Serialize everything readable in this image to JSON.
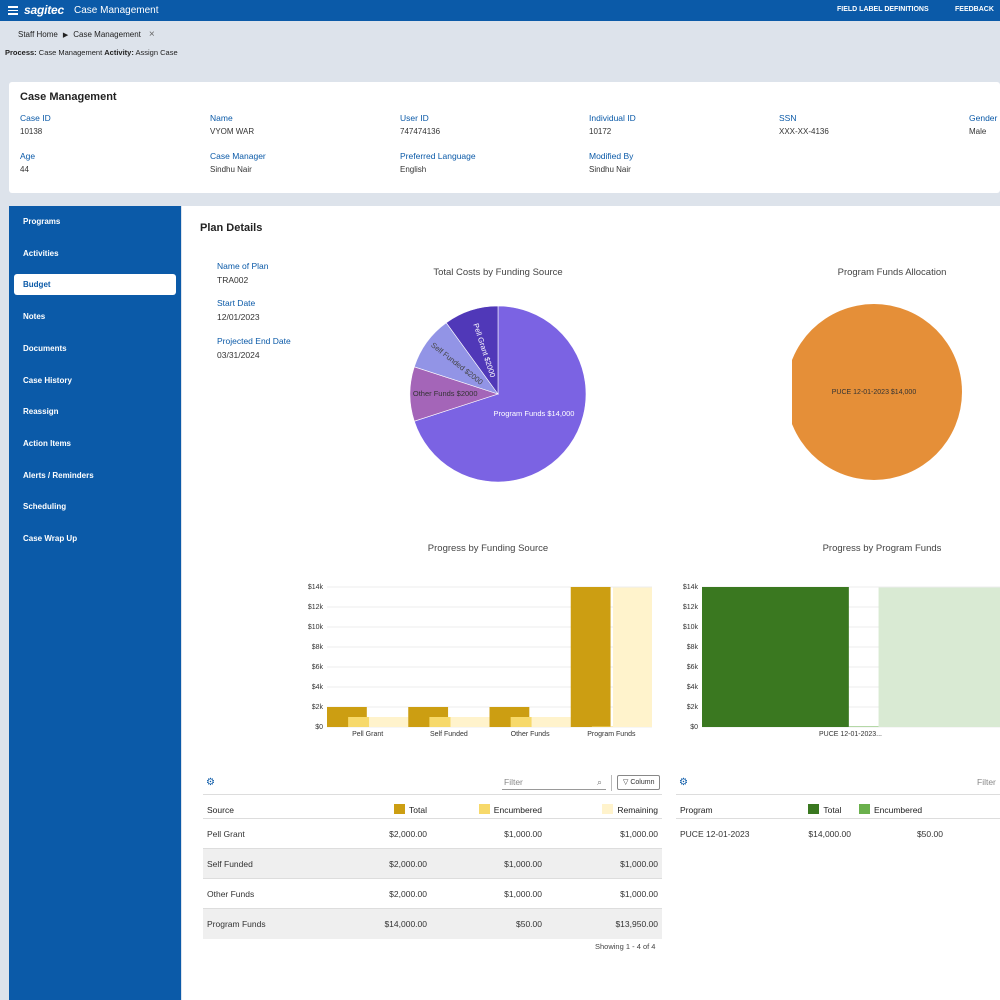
{
  "topbar": {
    "brand": "sagitec",
    "app_title": "Case Management",
    "link_field_labels": "FIELD LABEL DEFINITIONS",
    "link_feedback": "FEEDBACK"
  },
  "breadcrumb": {
    "home": "Staff Home",
    "current": "Case Management",
    "close": "×"
  },
  "process": {
    "process_label": "Process:",
    "process_value": "Case Management",
    "activity_label": "Activity:",
    "activity_value": "Assign Case"
  },
  "case": {
    "title": "Case Management",
    "fields": {
      "case_id": {
        "label": "Case ID",
        "value": "10138"
      },
      "name": {
        "label": "Name",
        "value": "VYOM WAR"
      },
      "user_id": {
        "label": "User ID",
        "value": "747474136"
      },
      "individual_id": {
        "label": "Individual ID",
        "value": "10172"
      },
      "ssn": {
        "label": "SSN",
        "value": "XXX-XX-4136"
      },
      "gender": {
        "label": "Gender",
        "value": "Male"
      },
      "age": {
        "label": "Age",
        "value": "44"
      },
      "case_manager": {
        "label": "Case Manager",
        "value": "Sindhu Nair"
      },
      "preferred_language": {
        "label": "Preferred Language",
        "value": "English"
      },
      "modified_by": {
        "label": "Modified By",
        "value": "Sindhu Nair"
      }
    }
  },
  "sidebar": {
    "items": [
      {
        "label": "Programs"
      },
      {
        "label": "Activities"
      },
      {
        "label": "Budget",
        "active": true
      },
      {
        "label": "Notes"
      },
      {
        "label": "Documents"
      },
      {
        "label": "Case History"
      },
      {
        "label": "Reassign"
      },
      {
        "label": "Action Items"
      },
      {
        "label": "Alerts / Reminders"
      },
      {
        "label": "Scheduling"
      },
      {
        "label": "Case Wrap Up"
      }
    ]
  },
  "plan": {
    "title": "Plan Details",
    "name_of_plan": {
      "label": "Name of Plan",
      "value": "TRA002"
    },
    "start_date": {
      "label": "Start Date",
      "value": "12/01/2023"
    },
    "projected_end_date": {
      "label": "Projected End Date",
      "value": "03/31/2024"
    }
  },
  "colors": {
    "brand": "#0b5aa8",
    "total_gold": "#cc9e12",
    "encumbered_yellow": "#f7d96a",
    "remaining_cream": "#fff3cc",
    "program_total_green": "#3a7820",
    "program_encumbered_green": "#6ab04c",
    "program_remaining_green": "#d9ead3"
  },
  "chart_data": [
    {
      "type": "pie",
      "title": "Total Costs by Funding Source",
      "slices": [
        {
          "label": "Program Funds $14,000",
          "value": 14000,
          "color": "#7b63e3"
        },
        {
          "label": "Other Funds $2000",
          "value": 2000,
          "color": "#a465b8"
        },
        {
          "label": "Self Funded $2000",
          "value": 2000,
          "color": "#9294e6"
        },
        {
          "label": "Pell Grant $2000",
          "value": 2000,
          "color": "#5038b8"
        }
      ]
    },
    {
      "type": "pie",
      "title": "Program Funds Allocation",
      "slices": [
        {
          "label": "PUCE 12-01-2023  $14,000",
          "value": 14000,
          "color": "#e58f38"
        }
      ]
    },
    {
      "type": "bar",
      "title": "Progress by Funding Source",
      "categories": [
        "Pell Grant",
        "Self Funded",
        "Other Funds",
        "Program Funds"
      ],
      "y_ticks": [
        "$0",
        "$2k",
        "$4k",
        "$6k",
        "$8k",
        "$10k",
        "$12k",
        "$14k"
      ],
      "ylim": [
        0,
        14000
      ],
      "series": [
        {
          "name": "Total",
          "values": [
            2000,
            2000,
            2000,
            14000
          ]
        },
        {
          "name": "Encumbered",
          "values": [
            1000,
            1000,
            1000,
            50
          ]
        },
        {
          "name": "Remaining",
          "values": [
            1000,
            1000,
            1000,
            13950
          ]
        }
      ]
    },
    {
      "type": "bar",
      "title": "Progress by Program Funds",
      "categories": [
        "PUCE 12-01-2023..."
      ],
      "y_ticks": [
        "$0",
        "$2k",
        "$4k",
        "$6k",
        "$8k",
        "$10k",
        "$12k",
        "$14k"
      ],
      "ylim": [
        0,
        14000
      ],
      "series": [
        {
          "name": "Total",
          "values": [
            14000
          ]
        },
        {
          "name": "Encumbered",
          "values": [
            50
          ]
        },
        {
          "name": "Remaining",
          "values": [
            13950
          ]
        }
      ]
    }
  ],
  "source_grid": {
    "filter_placeholder": "Filter",
    "column_button": "Column",
    "headers": [
      "Source",
      "Total",
      "Encumbered",
      "Remaining"
    ],
    "rows": [
      [
        "Pell Grant",
        "$2,000.00",
        "$1,000.00",
        "$1,000.00"
      ],
      [
        "Self Funded",
        "$2,000.00",
        "$1,000.00",
        "$1,000.00"
      ],
      [
        "Other Funds",
        "$2,000.00",
        "$1,000.00",
        "$1,000.00"
      ],
      [
        "Program Funds",
        "$14,000.00",
        "$50.00",
        "$13,950.00"
      ]
    ],
    "showing": "Showing 1 - 4 of 4"
  },
  "program_grid": {
    "filter_placeholder": "Filter",
    "headers": [
      "Program",
      "Total",
      "Encumbered"
    ],
    "rows": [
      [
        "PUCE 12-01-2023",
        "$14,000.00",
        "$50.00"
      ]
    ]
  }
}
